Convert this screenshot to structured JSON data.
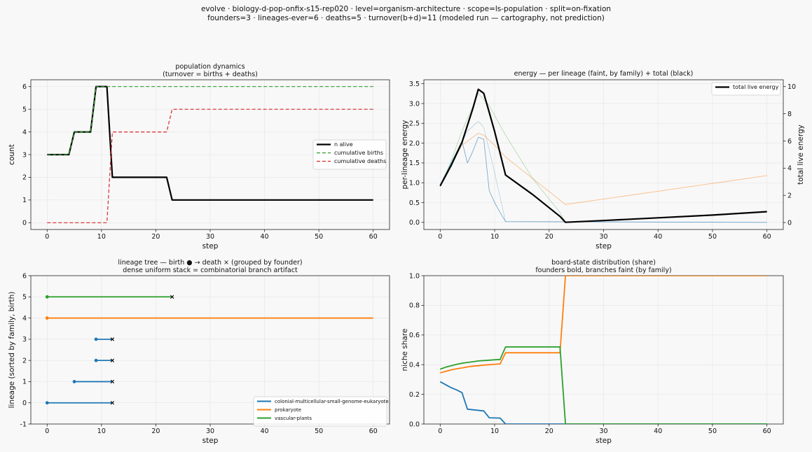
{
  "header": {
    "line1": "evolve · biology-d-pop-onfix-s15-rep020 · level=organism-architecture · scope=ls-population · split=on-fixation",
    "line2": "founders=3 · lineages-ever=6 · deaths=5 · turnover(b+d)=11   (modeled run — cartography, not prediction)"
  },
  "colors": {
    "blue": "#1f77b4",
    "orange": "#ff7f0e",
    "green": "#2ca02c",
    "red": "#d62728",
    "black": "#000000"
  },
  "chart_data": [
    {
      "id": "pop",
      "type": "line",
      "title": "population dynamics",
      "subtitle": "(turnover = births + deaths)",
      "xlabel": "step",
      "ylabel": "count",
      "xlim": [
        -3,
        63
      ],
      "ylim": [
        -0.3,
        6.3
      ],
      "xticks": [
        0,
        10,
        20,
        30,
        40,
        50,
        60
      ],
      "yticks": [
        0,
        1,
        2,
        3,
        4,
        5,
        6
      ],
      "legend": "center-right",
      "series": [
        {
          "name": "n alive",
          "color": "#000000",
          "style": "solid",
          "width": 2.2,
          "x": [
            0,
            4,
            5,
            8,
            9,
            11,
            12,
            22,
            23,
            60
          ],
          "y": [
            3,
            3,
            4,
            4,
            6,
            6,
            2,
            2,
            1,
            1
          ]
        },
        {
          "name": "cumulative births",
          "color": "#2ca02c",
          "style": "dashed",
          "width": 1.2,
          "x": [
            0,
            4,
            5,
            8,
            9,
            60
          ],
          "y": [
            3,
            3,
            4,
            4,
            6,
            6
          ]
        },
        {
          "name": "cumulative deaths",
          "color": "#d62728",
          "style": "dashed",
          "width": 1.2,
          "x": [
            0,
            11,
            12,
            22,
            23,
            60
          ],
          "y": [
            0,
            0,
            4,
            4,
            5,
            5
          ]
        }
      ]
    },
    {
      "id": "energy",
      "type": "line",
      "title": "energy — per lineage (faint, by family) + total (black)",
      "xlabel": "step",
      "ylabel": "per-lineage energy",
      "ylabel_right": "total live energy",
      "xlim": [
        -3,
        63
      ],
      "ylim": [
        -0.18,
        3.6
      ],
      "ylim_right": [
        -0.51,
        10.5
      ],
      "xticks": [
        0,
        10,
        20,
        30,
        40,
        50,
        60
      ],
      "yticks": [
        0.0,
        0.5,
        1.0,
        1.5,
        2.0,
        2.5,
        3.0,
        3.5
      ],
      "yticks_right": [
        0,
        2,
        4,
        6,
        8,
        10
      ],
      "legend": "top-right",
      "series": [
        {
          "name": "",
          "color": "#1f77b4",
          "width": 0.8,
          "opacity": 0.65,
          "axis": "left",
          "x": [
            0,
            2,
            4,
            5,
            6,
            7,
            8,
            9,
            10,
            11,
            12,
            60
          ],
          "y": [
            0.95,
            1.5,
            2.05,
            1.5,
            1.8,
            2.15,
            2.1,
            0.8,
            0.5,
            0.25,
            0.02,
            0.0
          ]
        },
        {
          "name": "",
          "color": "#1f77b4",
          "width": 0.6,
          "opacity": 0.4,
          "axis": "left",
          "x": [
            0,
            3,
            5,
            7,
            8,
            10,
            12
          ],
          "y": [
            0.95,
            1.75,
            2.3,
            2.55,
            2.4,
            1.25,
            0.02
          ]
        },
        {
          "name": "",
          "color": "#ff7f0e",
          "width": 0.8,
          "opacity": 0.55,
          "axis": "left",
          "x": [
            0,
            2,
            4,
            6,
            7,
            8,
            10,
            12,
            23,
            60
          ],
          "y": [
            0.9,
            1.45,
            1.95,
            2.15,
            2.25,
            2.2,
            1.95,
            1.65,
            0.45,
            1.18
          ]
        },
        {
          "name": "",
          "color": "#2ca02c",
          "width": 0.6,
          "opacity": 0.45,
          "axis": "left",
          "x": [
            0,
            2,
            4,
            7,
            9,
            12,
            17,
            22,
            23
          ],
          "y": [
            0.9,
            1.55,
            2.3,
            3.25,
            2.95,
            2.2,
            1.1,
            0.25,
            0.0
          ]
        },
        {
          "name": "total live energy",
          "color": "#000000",
          "width": 2.2,
          "axis": "right",
          "x": [
            0,
            2,
            4,
            6,
            7,
            8,
            9,
            10,
            11,
            12,
            17,
            22,
            23,
            30,
            40,
            50,
            60
          ],
          "y": [
            2.7,
            4.2,
            5.9,
            8.4,
            9.8,
            9.5,
            8.1,
            6.7,
            5.1,
            3.5,
            2.05,
            0.45,
            0.02,
            0.15,
            0.35,
            0.55,
            0.8
          ]
        }
      ]
    },
    {
      "id": "tree",
      "type": "timeline",
      "title": "lineage tree — birth ● → death ×  (grouped by founder)",
      "subtitle": "dense uniform stack = combinatorial branch artifact",
      "xlabel": "step",
      "ylabel": "lineage (sorted by family, birth)",
      "xlim": [
        -3,
        63
      ],
      "ylim": [
        -1,
        6
      ],
      "xticks": [
        0,
        10,
        20,
        30,
        40,
        50,
        60
      ],
      "yticks": [
        -1,
        0,
        1,
        2,
        3,
        4,
        5,
        6
      ],
      "legend": "bottom-right",
      "legend_entries": [
        {
          "name": "colonial-multicellular-small-genome-eukaryote",
          "color": "#1f77b4"
        },
        {
          "name": "prokaryote",
          "color": "#ff7f0e"
        },
        {
          "name": "vascular-plants",
          "color": "#2ca02c"
        }
      ],
      "lineages": [
        {
          "y": 0,
          "birth": 0,
          "death": 12,
          "color": "#1f77b4"
        },
        {
          "y": 1,
          "birth": 5,
          "death": 12,
          "color": "#1f77b4"
        },
        {
          "y": 2,
          "birth": 9,
          "death": 12,
          "color": "#1f77b4"
        },
        {
          "y": 3,
          "birth": 9,
          "death": 12,
          "color": "#1f77b4"
        },
        {
          "y": 4,
          "birth": 0,
          "death": null,
          "end": 60,
          "color": "#ff7f0e"
        },
        {
          "y": 5,
          "birth": 0,
          "death": 23,
          "color": "#2ca02c"
        }
      ]
    },
    {
      "id": "share",
      "type": "line",
      "title": "board-state distribution (share)",
      "subtitle": "founders bold, branches faint (by family)",
      "xlabel": "step",
      "ylabel": "niche share",
      "xlim": [
        -3,
        63
      ],
      "ylim": [
        0,
        1
      ],
      "xticks": [
        0,
        10,
        20,
        30,
        40,
        50,
        60
      ],
      "yticks": [
        0.0,
        0.2,
        0.4,
        0.6,
        0.8,
        1.0
      ],
      "series": [
        {
          "name": "",
          "color": "#1f77b4",
          "width": 1.8,
          "x": [
            0,
            1,
            2,
            3,
            4,
            5,
            8,
            9,
            11,
            12,
            60
          ],
          "y": [
            0.285,
            0.265,
            0.245,
            0.23,
            0.212,
            0.1,
            0.088,
            0.042,
            0.04,
            0.0,
            0.0
          ]
        },
        {
          "name": "",
          "color": "#ff7f0e",
          "width": 1.8,
          "x": [
            0,
            1,
            2,
            3,
            4,
            5,
            6,
            7,
            8,
            9,
            10,
            11,
            12,
            22,
            23,
            60
          ],
          "y": [
            0.345,
            0.355,
            0.365,
            0.372,
            0.378,
            0.385,
            0.39,
            0.393,
            0.397,
            0.4,
            0.403,
            0.405,
            0.48,
            0.48,
            1.0,
            1.0
          ]
        },
        {
          "name": "",
          "color": "#2ca02c",
          "width": 1.8,
          "x": [
            0,
            1,
            2,
            3,
            4,
            5,
            6,
            7,
            8,
            9,
            10,
            11,
            12,
            22,
            23,
            60
          ],
          "y": [
            0.37,
            0.383,
            0.393,
            0.402,
            0.41,
            0.415,
            0.42,
            0.425,
            0.428,
            0.43,
            0.433,
            0.435,
            0.52,
            0.52,
            0.0,
            0.0
          ]
        }
      ]
    }
  ]
}
